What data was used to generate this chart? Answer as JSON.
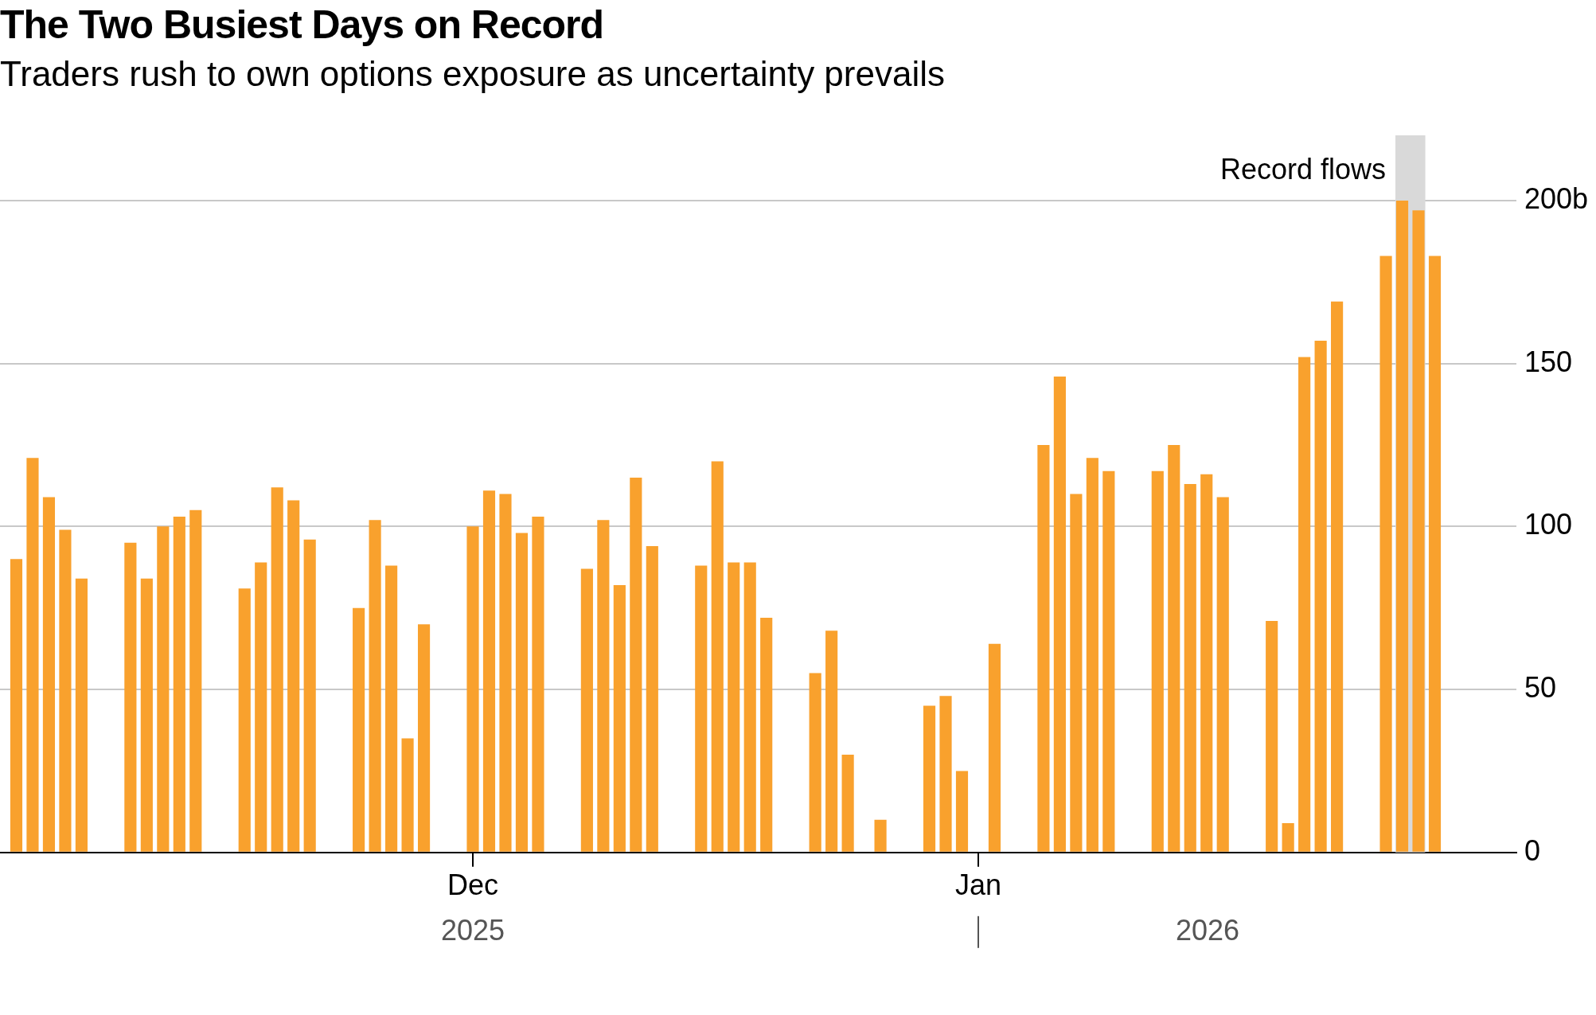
{
  "chart_data": {
    "type": "bar",
    "title": "The Two Busiest Days on Record",
    "subtitle": "Traders rush to own options exposure as uncertainty prevails",
    "x": [
      "2025-11-03",
      "2025-11-04",
      "2025-11-05",
      "2025-11-06",
      "2025-11-07",
      "2025-11-10",
      "2025-11-11",
      "2025-11-12",
      "2025-11-13",
      "2025-11-14",
      "2025-11-17",
      "2025-11-18",
      "2025-11-19",
      "2025-11-20",
      "2025-11-21",
      "2025-11-24",
      "2025-11-25",
      "2025-11-26",
      "2025-11-27",
      "2025-11-28",
      "2025-12-01",
      "2025-12-02",
      "2025-12-03",
      "2025-12-04",
      "2025-12-05",
      "2025-12-08",
      "2025-12-09",
      "2025-12-10",
      "2025-12-11",
      "2025-12-12",
      "2025-12-15",
      "2025-12-16",
      "2025-12-17",
      "2025-12-18",
      "2025-12-19",
      "2025-12-22",
      "2025-12-23",
      "2025-12-24",
      "2025-12-26",
      "2025-12-29",
      "2025-12-30",
      "2025-12-31",
      "2026-01-02",
      "2026-01-05",
      "2026-01-06",
      "2026-01-07",
      "2026-01-08",
      "2026-01-09",
      "2026-01-12",
      "2026-01-13",
      "2026-01-14",
      "2026-01-15",
      "2026-01-16",
      "2026-01-19",
      "2026-01-20",
      "2026-01-21",
      "2026-01-22",
      "2026-01-23",
      "2026-01-26",
      "2026-01-27",
      "2026-01-28",
      "2026-01-29"
    ],
    "values": [
      90,
      121,
      109,
      99,
      84,
      95,
      84,
      100,
      103,
      105,
      81,
      89,
      112,
      108,
      96,
      75,
      102,
      88,
      35,
      70,
      100,
      111,
      110,
      98,
      103,
      87,
      102,
      82,
      115,
      94,
      88,
      120,
      89,
      89,
      72,
      55,
      68,
      30,
      10,
      45,
      48,
      25,
      64,
      125,
      146,
      110,
      121,
      117,
      117,
      125,
      113,
      116,
      109,
      71,
      9,
      152,
      157,
      169,
      183,
      200,
      197,
      183
    ],
    "color": "#f9a12d",
    "xlim": [
      "2025-11-02",
      "2026-02-03"
    ],
    "xticks": [
      {
        "value": "2025-12-01",
        "label": "Dec"
      },
      {
        "value": "2026-01-01",
        "label": "Jan"
      }
    ],
    "ylim": [
      0,
      220
    ],
    "yticks": [
      0,
      50,
      100,
      150,
      {
        "value": 200,
        "label": "200b"
      }
    ],
    "bands": [
      {
        "axis": "x",
        "from": "2026-01-26T14:00",
        "to": "2026-01-28T10:00",
        "label": "Record flows",
        "color": "#d9d9d9"
      }
    ],
    "annotations": [
      "2025",
      "2026"
    ],
    "grid": "y",
    "legend": false
  }
}
